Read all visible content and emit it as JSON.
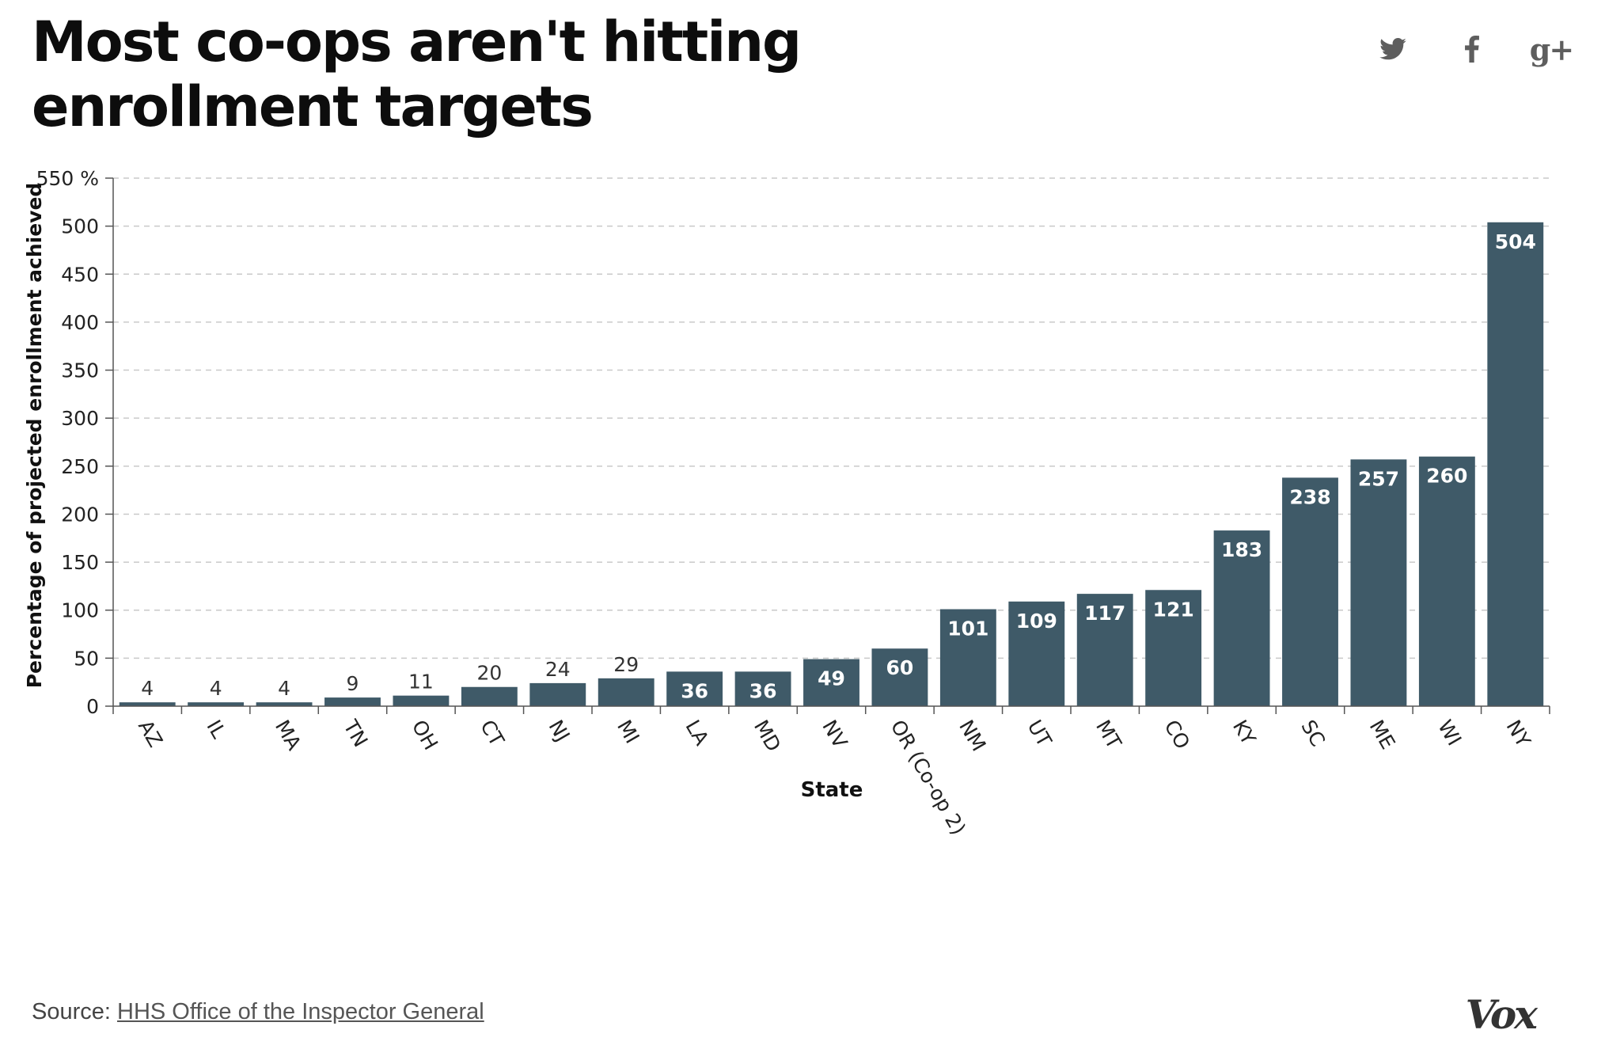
{
  "header": {
    "title": "Most co-ops aren't hitting enrollment targets"
  },
  "share": {
    "twitter_icon": "twitter-icon",
    "facebook_icon": "facebook-icon",
    "gplus_icon": "google-plus-icon",
    "gplus_glyph": "g+"
  },
  "chart_data": {
    "type": "bar",
    "title": "Most co-ops aren't hitting enrollment targets",
    "xlabel": "State",
    "ylabel": "Percentage of projected enrollment achieved",
    "ylim": [
      0,
      550
    ],
    "yticks": [
      0,
      50,
      100,
      150,
      200,
      250,
      300,
      350,
      400,
      450,
      500,
      550
    ],
    "ytick_labels": [
      "0",
      "50",
      "100",
      "150",
      "200",
      "250",
      "300",
      "350",
      "400",
      "450",
      "500",
      "550 %"
    ],
    "grid": true,
    "categories": [
      "AZ",
      "IL",
      "MA",
      "TN",
      "OH",
      "CT",
      "NJ",
      "MI",
      "LA",
      "MD",
      "NV",
      "OR (Co-op 2)",
      "NM",
      "UT",
      "MT",
      "CO",
      "KY",
      "SC",
      "ME",
      "WI",
      "NY"
    ],
    "values": [
      4,
      4,
      4,
      9,
      11,
      20,
      24,
      29,
      36,
      36,
      49,
      60,
      101,
      109,
      117,
      121,
      183,
      238,
      257,
      260,
      504
    ],
    "bar_color": "#3f5a68"
  },
  "footer": {
    "source_prefix": "Source:",
    "source_link": "HHS Office of the Inspector General",
    "logo": "Vox"
  }
}
